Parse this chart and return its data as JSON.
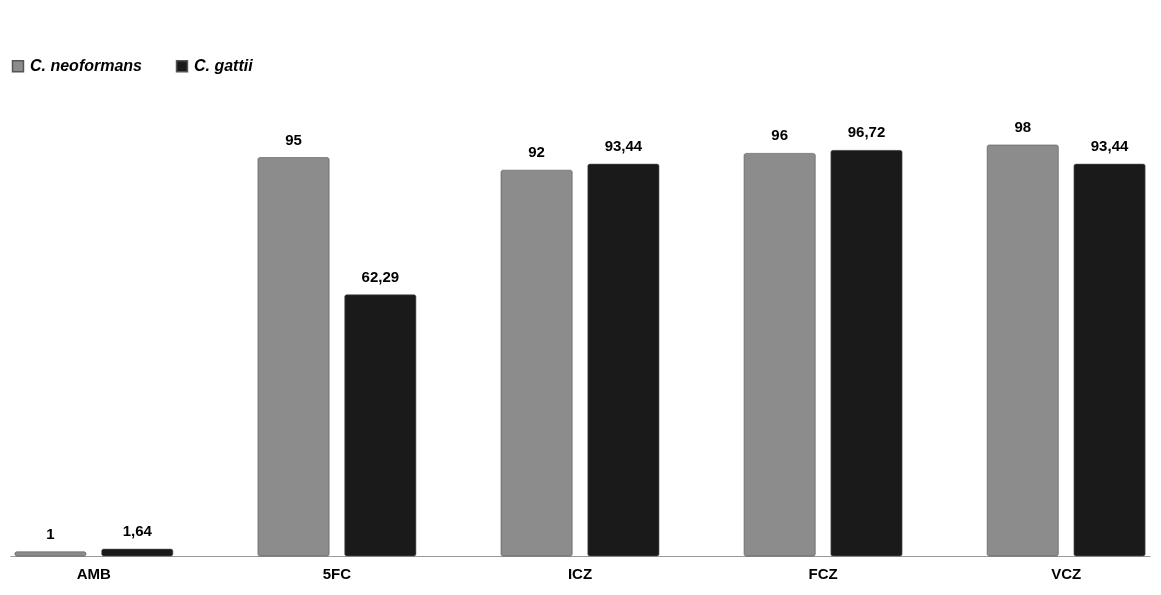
{
  "chart_data": {
    "type": "bar",
    "categories": [
      "AMB",
      "5FC",
      "ICZ",
      "FCZ",
      "VCZ"
    ],
    "series": [
      {
        "name": "C. neoformans",
        "color": "#8c8c8c",
        "values": [
          1,
          95,
          92,
          96,
          98
        ],
        "value_labels": [
          "1",
          "95",
          "92",
          "96",
          "98"
        ]
      },
      {
        "name": "C. gattii",
        "color": "#1a1a1a",
        "values": [
          1.64,
          62.29,
          93.44,
          96.72,
          93.44
        ],
        "value_labels": [
          "1,64",
          "62,29",
          "93,44",
          "96,72",
          "93,44"
        ]
      }
    ],
    "legend": "top"
  }
}
